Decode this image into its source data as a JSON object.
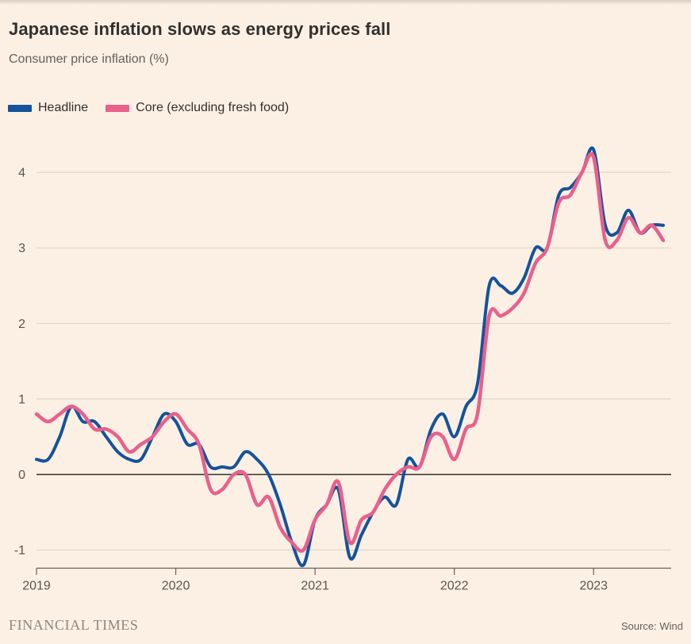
{
  "header": {
    "title": "Japanese inflation slows as energy prices fall",
    "subtitle": "Consumer price inflation (%)"
  },
  "footer": {
    "brand": "FINANCIAL TIMES",
    "source": "Source: Wind"
  },
  "colors": {
    "background": "#FCF0E4",
    "headline_line": "#15539B",
    "core_line": "#E9608C",
    "gridline": "#E2D5C6",
    "zero_line": "#33302E",
    "axis": "#66605C",
    "tick_label": "#5B5550",
    "title_text": "#33302E",
    "subtitle_text": "#66605C"
  },
  "chart_data": {
    "type": "line",
    "title": "Japanese inflation slows as energy prices fall",
    "subtitle": "Consumer price inflation (%)",
    "xlabel": "",
    "ylabel": "Consumer price inflation (%)",
    "grid": "horizontal",
    "legend_position": "top-left",
    "zero_line": true,
    "ylim": [
      -1.35,
      4.45
    ],
    "y_ticks": [
      "-1",
      "0",
      "1",
      "2",
      "3",
      "4"
    ],
    "x_ticks": [
      {
        "label": "2019",
        "month_index": 0
      },
      {
        "label": "2020",
        "month_index": 12
      },
      {
        "label": "2021",
        "month_index": 24
      },
      {
        "label": "2022",
        "month_index": 36
      },
      {
        "label": "2023",
        "month_index": 48
      }
    ],
    "x": [
      "2019-01",
      "2019-02",
      "2019-03",
      "2019-04",
      "2019-05",
      "2019-06",
      "2019-07",
      "2019-08",
      "2019-09",
      "2019-10",
      "2019-11",
      "2019-12",
      "2020-01",
      "2020-02",
      "2020-03",
      "2020-04",
      "2020-05",
      "2020-06",
      "2020-07",
      "2020-08",
      "2020-09",
      "2020-10",
      "2020-11",
      "2020-12",
      "2021-01",
      "2021-02",
      "2021-03",
      "2021-04",
      "2021-05",
      "2021-06",
      "2021-07",
      "2021-08",
      "2021-09",
      "2021-10",
      "2021-11",
      "2021-12",
      "2022-01",
      "2022-02",
      "2022-03",
      "2022-04",
      "2022-05",
      "2022-06",
      "2022-07",
      "2022-08",
      "2022-09",
      "2022-10",
      "2022-11",
      "2022-12",
      "2023-01",
      "2023-02",
      "2023-03",
      "2023-04",
      "2023-05",
      "2023-06",
      "2023-07"
    ],
    "series": [
      {
        "name": "Headline",
        "color": "#15539B",
        "values": [
          0.2,
          0.2,
          0.5,
          0.9,
          0.7,
          0.7,
          0.5,
          0.3,
          0.2,
          0.2,
          0.5,
          0.8,
          0.7,
          0.4,
          0.4,
          0.1,
          0.1,
          0.1,
          0.3,
          0.2,
          0.0,
          -0.4,
          -0.9,
          -1.2,
          -0.6,
          -0.4,
          -0.2,
          -1.1,
          -0.8,
          -0.5,
          -0.3,
          -0.4,
          0.2,
          0.1,
          0.6,
          0.8,
          0.5,
          0.9,
          1.2,
          2.5,
          2.5,
          2.4,
          2.6,
          3.0,
          3.0,
          3.7,
          3.8,
          4.0,
          4.3,
          3.3,
          3.2,
          3.5,
          3.2,
          3.3,
          3.3
        ]
      },
      {
        "name": "Core (excluding fresh food)",
        "color": "#E9608C",
        "values": [
          0.8,
          0.7,
          0.8,
          0.9,
          0.8,
          0.6,
          0.6,
          0.5,
          0.3,
          0.4,
          0.5,
          0.7,
          0.8,
          0.6,
          0.4,
          -0.2,
          -0.2,
          0.0,
          0.0,
          -0.4,
          -0.3,
          -0.7,
          -0.9,
          -1.0,
          -0.6,
          -0.4,
          -0.1,
          -0.9,
          -0.6,
          -0.5,
          -0.2,
          0.0,
          0.1,
          0.1,
          0.5,
          0.5,
          0.2,
          0.6,
          0.8,
          2.1,
          2.1,
          2.2,
          2.4,
          2.8,
          3.0,
          3.6,
          3.7,
          4.0,
          4.2,
          3.1,
          3.1,
          3.4,
          3.2,
          3.3,
          3.1
        ]
      }
    ]
  }
}
